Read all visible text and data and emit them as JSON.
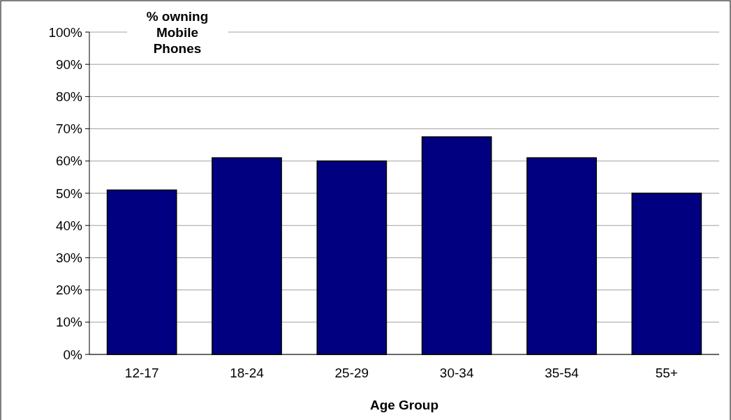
{
  "chart_data": {
    "type": "bar",
    "title": "% owning Mobile Phones",
    "xlabel": "Age Group",
    "categories": [
      "12-17",
      "18-24",
      "25-29",
      "30-34",
      "35-54",
      "55+"
    ],
    "values": [
      51,
      61,
      60,
      67.5,
      61,
      50
    ],
    "color": "#000080",
    "ylim": [
      0,
      100
    ],
    "yticks": [
      {
        "value": 0,
        "label": "0%"
      },
      {
        "value": 10,
        "label": "10%"
      },
      {
        "value": 20,
        "label": "20%"
      },
      {
        "value": 30,
        "label": "30%"
      },
      {
        "value": 40,
        "label": "40%"
      },
      {
        "value": 50,
        "label": "50%"
      },
      {
        "value": 60,
        "label": "60%"
      },
      {
        "value": 70,
        "label": "70%"
      },
      {
        "value": 80,
        "label": "80%"
      },
      {
        "value": 90,
        "label": "90%"
      },
      {
        "value": 100,
        "label": "100%"
      }
    ],
    "grid": "y"
  }
}
